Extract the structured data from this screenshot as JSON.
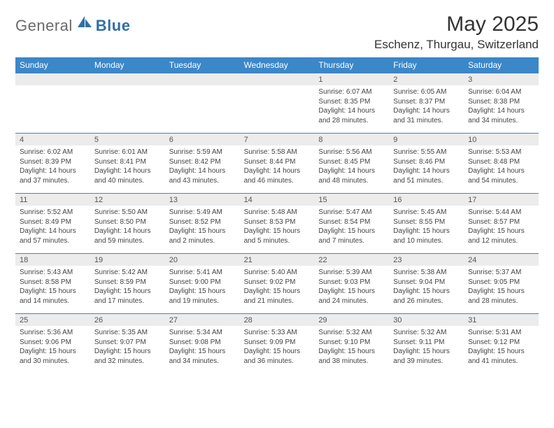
{
  "brand": {
    "text1": "General",
    "text2": "Blue"
  },
  "title": "May 2025",
  "location": "Eschenz, Thurgau, Switzerland",
  "colors": {
    "header_bg": "#3b87c8",
    "header_text": "#ffffff",
    "daynum_bg": "#ececec",
    "border": "#3b87c8",
    "brand_gray": "#6a6a6a",
    "brand_blue": "#2f6fa7"
  },
  "weekdays": [
    "Sunday",
    "Monday",
    "Tuesday",
    "Wednesday",
    "Thursday",
    "Friday",
    "Saturday"
  ],
  "weeks": [
    [
      {
        "num": "",
        "sunrise": "",
        "sunset": "",
        "daylight": ""
      },
      {
        "num": "",
        "sunrise": "",
        "sunset": "",
        "daylight": ""
      },
      {
        "num": "",
        "sunrise": "",
        "sunset": "",
        "daylight": ""
      },
      {
        "num": "",
        "sunrise": "",
        "sunset": "",
        "daylight": ""
      },
      {
        "num": "1",
        "sunrise": "Sunrise: 6:07 AM",
        "sunset": "Sunset: 8:35 PM",
        "daylight": "Daylight: 14 hours and 28 minutes."
      },
      {
        "num": "2",
        "sunrise": "Sunrise: 6:05 AM",
        "sunset": "Sunset: 8:37 PM",
        "daylight": "Daylight: 14 hours and 31 minutes."
      },
      {
        "num": "3",
        "sunrise": "Sunrise: 6:04 AM",
        "sunset": "Sunset: 8:38 PM",
        "daylight": "Daylight: 14 hours and 34 minutes."
      }
    ],
    [
      {
        "num": "4",
        "sunrise": "Sunrise: 6:02 AM",
        "sunset": "Sunset: 8:39 PM",
        "daylight": "Daylight: 14 hours and 37 minutes."
      },
      {
        "num": "5",
        "sunrise": "Sunrise: 6:01 AM",
        "sunset": "Sunset: 8:41 PM",
        "daylight": "Daylight: 14 hours and 40 minutes."
      },
      {
        "num": "6",
        "sunrise": "Sunrise: 5:59 AM",
        "sunset": "Sunset: 8:42 PM",
        "daylight": "Daylight: 14 hours and 43 minutes."
      },
      {
        "num": "7",
        "sunrise": "Sunrise: 5:58 AM",
        "sunset": "Sunset: 8:44 PM",
        "daylight": "Daylight: 14 hours and 46 minutes."
      },
      {
        "num": "8",
        "sunrise": "Sunrise: 5:56 AM",
        "sunset": "Sunset: 8:45 PM",
        "daylight": "Daylight: 14 hours and 48 minutes."
      },
      {
        "num": "9",
        "sunrise": "Sunrise: 5:55 AM",
        "sunset": "Sunset: 8:46 PM",
        "daylight": "Daylight: 14 hours and 51 minutes."
      },
      {
        "num": "10",
        "sunrise": "Sunrise: 5:53 AM",
        "sunset": "Sunset: 8:48 PM",
        "daylight": "Daylight: 14 hours and 54 minutes."
      }
    ],
    [
      {
        "num": "11",
        "sunrise": "Sunrise: 5:52 AM",
        "sunset": "Sunset: 8:49 PM",
        "daylight": "Daylight: 14 hours and 57 minutes."
      },
      {
        "num": "12",
        "sunrise": "Sunrise: 5:50 AM",
        "sunset": "Sunset: 8:50 PM",
        "daylight": "Daylight: 14 hours and 59 minutes."
      },
      {
        "num": "13",
        "sunrise": "Sunrise: 5:49 AM",
        "sunset": "Sunset: 8:52 PM",
        "daylight": "Daylight: 15 hours and 2 minutes."
      },
      {
        "num": "14",
        "sunrise": "Sunrise: 5:48 AM",
        "sunset": "Sunset: 8:53 PM",
        "daylight": "Daylight: 15 hours and 5 minutes."
      },
      {
        "num": "15",
        "sunrise": "Sunrise: 5:47 AM",
        "sunset": "Sunset: 8:54 PM",
        "daylight": "Daylight: 15 hours and 7 minutes."
      },
      {
        "num": "16",
        "sunrise": "Sunrise: 5:45 AM",
        "sunset": "Sunset: 8:55 PM",
        "daylight": "Daylight: 15 hours and 10 minutes."
      },
      {
        "num": "17",
        "sunrise": "Sunrise: 5:44 AM",
        "sunset": "Sunset: 8:57 PM",
        "daylight": "Daylight: 15 hours and 12 minutes."
      }
    ],
    [
      {
        "num": "18",
        "sunrise": "Sunrise: 5:43 AM",
        "sunset": "Sunset: 8:58 PM",
        "daylight": "Daylight: 15 hours and 14 minutes."
      },
      {
        "num": "19",
        "sunrise": "Sunrise: 5:42 AM",
        "sunset": "Sunset: 8:59 PM",
        "daylight": "Daylight: 15 hours and 17 minutes."
      },
      {
        "num": "20",
        "sunrise": "Sunrise: 5:41 AM",
        "sunset": "Sunset: 9:00 PM",
        "daylight": "Daylight: 15 hours and 19 minutes."
      },
      {
        "num": "21",
        "sunrise": "Sunrise: 5:40 AM",
        "sunset": "Sunset: 9:02 PM",
        "daylight": "Daylight: 15 hours and 21 minutes."
      },
      {
        "num": "22",
        "sunrise": "Sunrise: 5:39 AM",
        "sunset": "Sunset: 9:03 PM",
        "daylight": "Daylight: 15 hours and 24 minutes."
      },
      {
        "num": "23",
        "sunrise": "Sunrise: 5:38 AM",
        "sunset": "Sunset: 9:04 PM",
        "daylight": "Daylight: 15 hours and 26 minutes."
      },
      {
        "num": "24",
        "sunrise": "Sunrise: 5:37 AM",
        "sunset": "Sunset: 9:05 PM",
        "daylight": "Daylight: 15 hours and 28 minutes."
      }
    ],
    [
      {
        "num": "25",
        "sunrise": "Sunrise: 5:36 AM",
        "sunset": "Sunset: 9:06 PM",
        "daylight": "Daylight: 15 hours and 30 minutes."
      },
      {
        "num": "26",
        "sunrise": "Sunrise: 5:35 AM",
        "sunset": "Sunset: 9:07 PM",
        "daylight": "Daylight: 15 hours and 32 minutes."
      },
      {
        "num": "27",
        "sunrise": "Sunrise: 5:34 AM",
        "sunset": "Sunset: 9:08 PM",
        "daylight": "Daylight: 15 hours and 34 minutes."
      },
      {
        "num": "28",
        "sunrise": "Sunrise: 5:33 AM",
        "sunset": "Sunset: 9:09 PM",
        "daylight": "Daylight: 15 hours and 36 minutes."
      },
      {
        "num": "29",
        "sunrise": "Sunrise: 5:32 AM",
        "sunset": "Sunset: 9:10 PM",
        "daylight": "Daylight: 15 hours and 38 minutes."
      },
      {
        "num": "30",
        "sunrise": "Sunrise: 5:32 AM",
        "sunset": "Sunset: 9:11 PM",
        "daylight": "Daylight: 15 hours and 39 minutes."
      },
      {
        "num": "31",
        "sunrise": "Sunrise: 5:31 AM",
        "sunset": "Sunset: 9:12 PM",
        "daylight": "Daylight: 15 hours and 41 minutes."
      }
    ]
  ]
}
